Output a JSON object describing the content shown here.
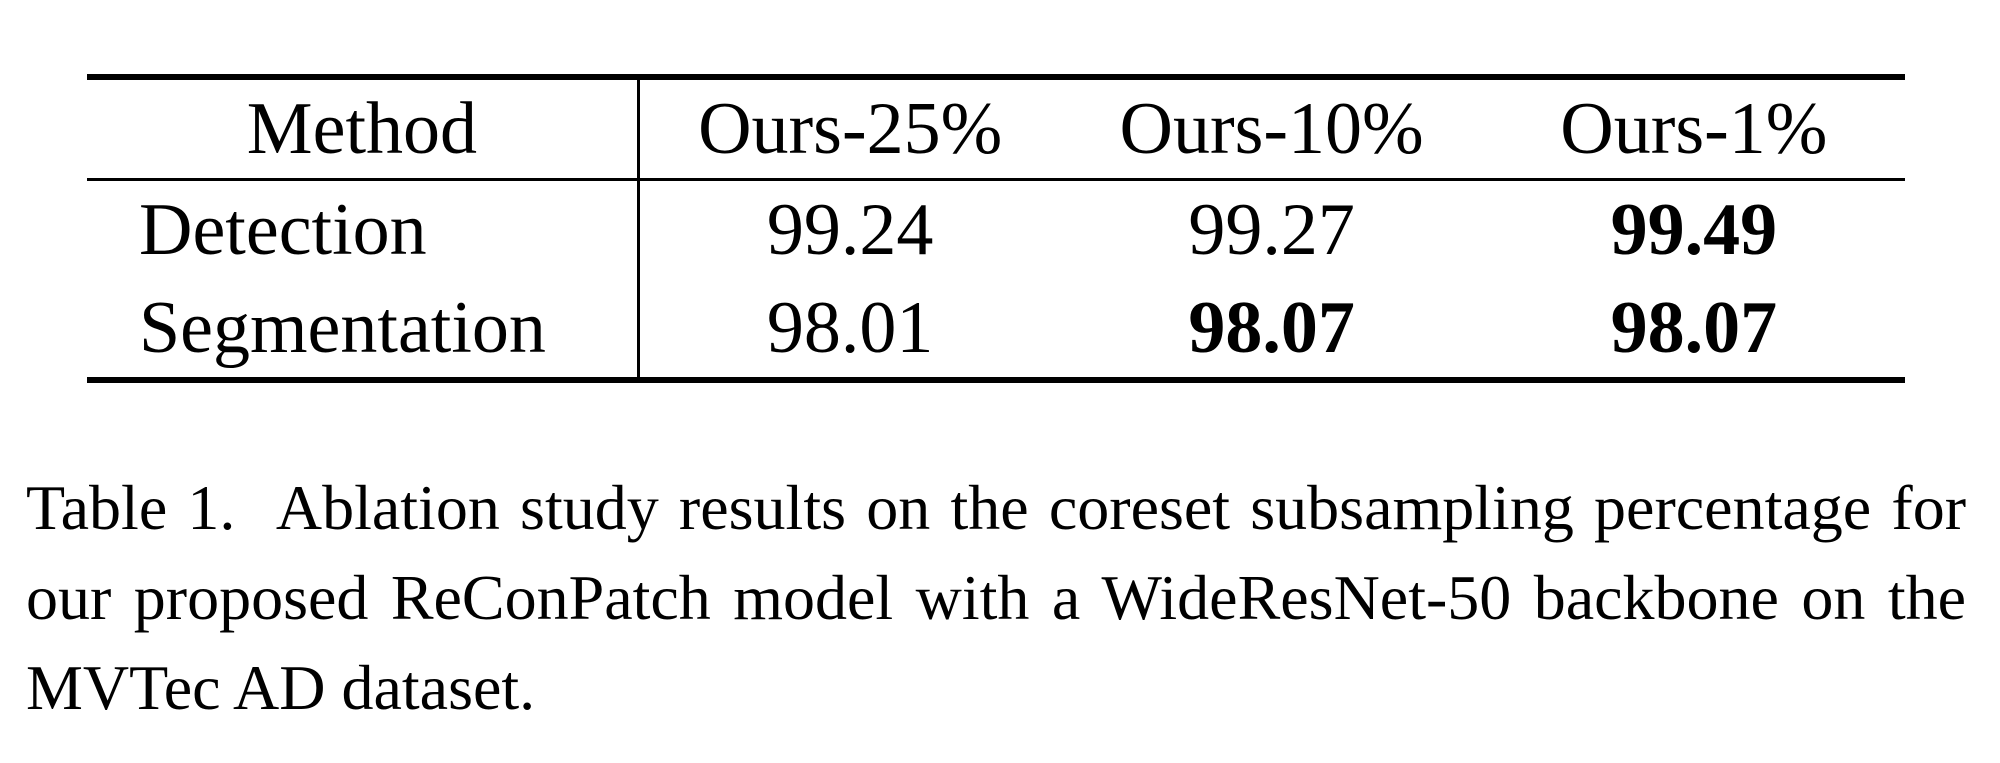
{
  "table": {
    "columns": [
      "Method",
      "Ours-25%",
      "Ours-10%",
      "Ours-1%"
    ],
    "rows": [
      {
        "label": "Detection",
        "values": [
          "99.24",
          "99.27",
          "99.49"
        ],
        "bold": [
          false,
          false,
          true
        ]
      },
      {
        "label": "Segmentation",
        "values": [
          "98.01",
          "98.07",
          "98.07"
        ],
        "bold": [
          false,
          true,
          true
        ]
      }
    ]
  },
  "caption": {
    "label": "Table 1.",
    "text": "Ablation study results on the coreset subsampling percentage for our proposed ReConPatch model with a WideResNet-50 backbone on the MVTec AD dataset."
  }
}
